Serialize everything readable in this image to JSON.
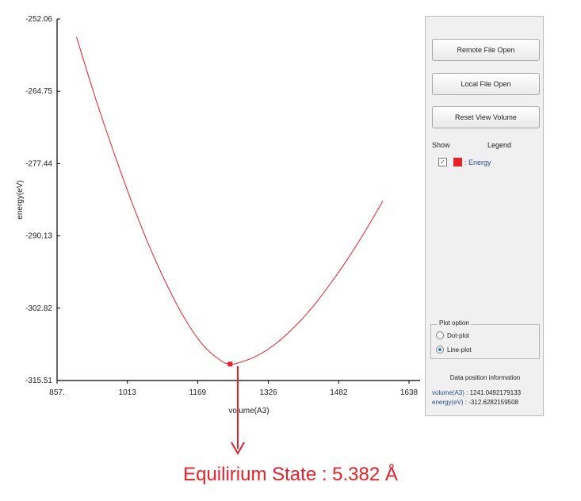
{
  "chart_data": {
    "type": "line",
    "xlabel": "volume(A3)",
    "ylabel": "energy(eV)",
    "xlim": [
      857,
      1638
    ],
    "ylim": [
      -315.51,
      -252.06
    ],
    "x_ticks": [
      "857.",
      "1013",
      "1169",
      "1326",
      "1482",
      "1638"
    ],
    "y_ticks": [
      "-252.06",
      "-264.75",
      "-277.44",
      "-290.13",
      "-302.82",
      "-315.51"
    ],
    "series": [
      {
        "color": "#e8202a",
        "x": [
          900,
          940,
          980,
          1020,
          1060,
          1100,
          1140,
          1180,
          1220,
          1241.05,
          1260,
          1300,
          1340,
          1380,
          1420,
          1460,
          1500,
          1540,
          1580
        ],
        "y": [
          -255.2,
          -265.4,
          -274.8,
          -283.6,
          -291.6,
          -298.6,
          -304.6,
          -309.2,
          -312.0,
          -312.63,
          -312.4,
          -311.2,
          -309.2,
          -306.4,
          -303.0,
          -298.9,
          -294.4,
          -289.4,
          -284.0
        ]
      }
    ],
    "marker": {
      "x": 1241.05,
      "y": -312.63
    }
  },
  "panel": {
    "remote_file_open": "Remote File Open",
    "local_file_open": "Local File Open",
    "reset_view_volume": "Reset View Volume",
    "show_header": "Show",
    "legend_header": "Legend",
    "legend_item": ": Energy",
    "legend_checked": "✓",
    "plot_option_title": "Plot option",
    "dot_plot": "Dot-plot",
    "line_plot": "Line-plot",
    "selected_plot": "line",
    "data_position_title": "Data position information",
    "volume_key": "volume(A3)",
    "volume_value": ": 1241.0492179133",
    "energy_key": "energy(eV)",
    "energy_value": ": -312.6282159508"
  },
  "annotation": {
    "text": "Equilirium State : 5.382 Å"
  },
  "colors": {
    "series": "#e8202a",
    "accent": "#2b4d8c"
  }
}
